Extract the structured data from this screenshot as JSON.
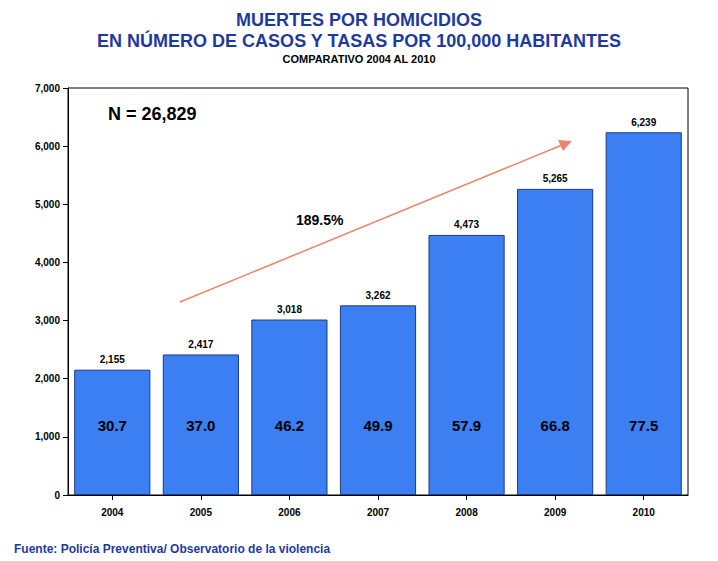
{
  "chart_data": {
    "type": "bar",
    "title": "MUERTES POR HOMICIDIOS\nEN NÚMERO DE CASOS Y TASAS POR 100,000 HABITANTES",
    "subtitle": "COMPARATIVO 2004 AL 2010",
    "annotations": [
      "N = 26,829",
      "189.5%"
    ],
    "source": "Fuente: Policía Preventiva/ Observatorio de la violencia",
    "categories": [
      "2004",
      "2005",
      "2006",
      "2007",
      "2008",
      "2009",
      "2010"
    ],
    "values": [
      2155,
      2417,
      3018,
      3262,
      4473,
      5265,
      6239
    ],
    "value_labels": [
      "2,155",
      "2,417",
      "3,018",
      "3,262",
      "4,473",
      "5,265",
      "6,239"
    ],
    "rates": [
      30.7,
      37.0,
      46.2,
      49.9,
      57.9,
      66.8,
      77.5
    ],
    "rate_labels": [
      "30.7",
      "37.0",
      "46.2",
      "49.9",
      "57.9",
      "66.8",
      "77.5"
    ],
    "color": "#3b7ff2",
    "ylim": [
      0,
      7000
    ],
    "yticks": [
      0,
      {
        "value": 1000,
        "label": "1,000"
      },
      {
        "value": 2000,
        "label": "2,000"
      },
      {
        "value": 3000,
        "label": "3,000"
      },
      {
        "value": 4000,
        "label": "4,000"
      },
      {
        "value": 5000,
        "label": "5,000"
      },
      {
        "value": 6000,
        "label": "6,000"
      },
      {
        "value": 7000,
        "label": "7,000"
      }
    ],
    "grid": false,
    "data_labels": true
  }
}
